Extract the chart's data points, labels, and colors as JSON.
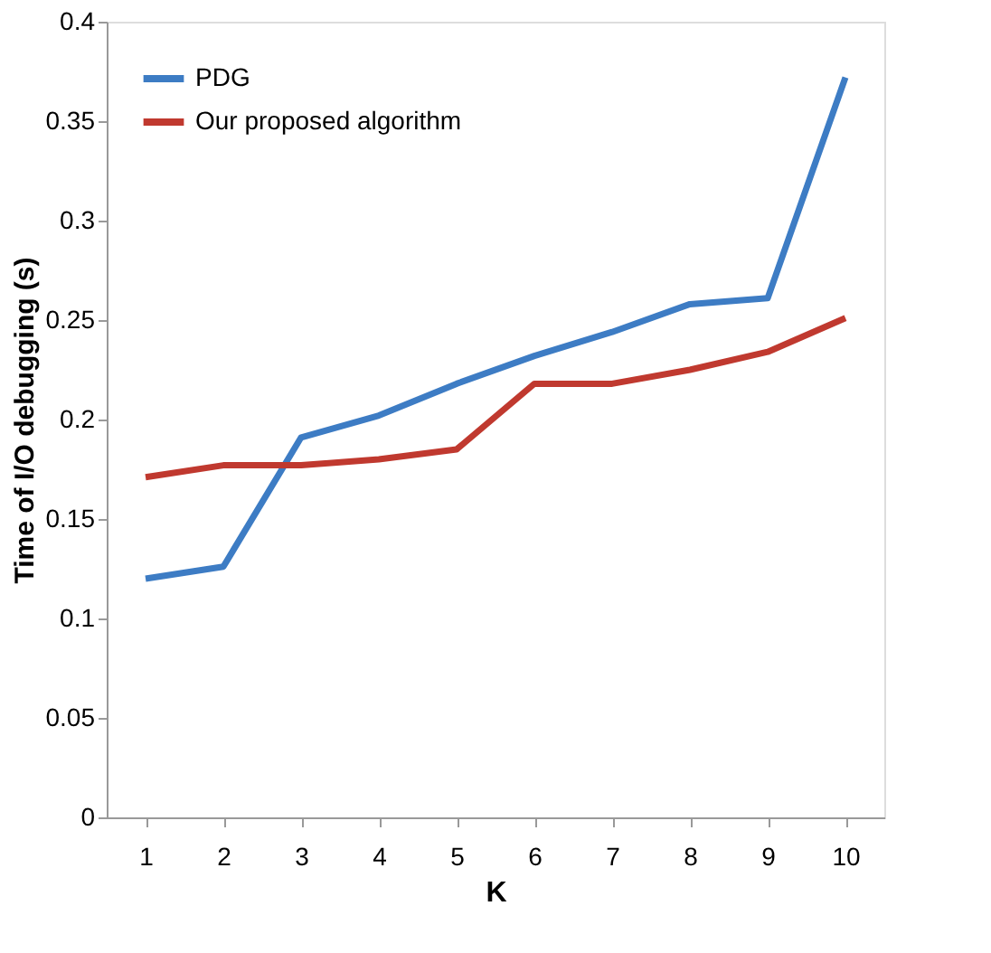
{
  "chart_data": {
    "type": "line",
    "xlabel": "K",
    "ylabel": "Time of I/O debugging (s)",
    "categories": [
      "1",
      "2",
      "3",
      "4",
      "5",
      "6",
      "7",
      "8",
      "9",
      "10"
    ],
    "series": [
      {
        "name": "PDG",
        "color": "#3d7cc4",
        "values": [
          0.12,
          0.126,
          0.191,
          0.202,
          0.218,
          0.232,
          0.244,
          0.258,
          0.261,
          0.372
        ]
      },
      {
        "name": "Our proposed algorithm",
        "color": "#c0392f",
        "values": [
          0.171,
          0.177,
          0.177,
          0.18,
          0.185,
          0.218,
          0.218,
          0.225,
          0.234,
          0.251
        ]
      }
    ],
    "ylim": [
      0,
      0.4
    ],
    "yticks": [
      0,
      0.05,
      0.1,
      0.15,
      0.2,
      0.25,
      0.3,
      0.35,
      0.4
    ],
    "grid": false,
    "legend": "top left",
    "marker": "none",
    "line_style": "solid"
  }
}
